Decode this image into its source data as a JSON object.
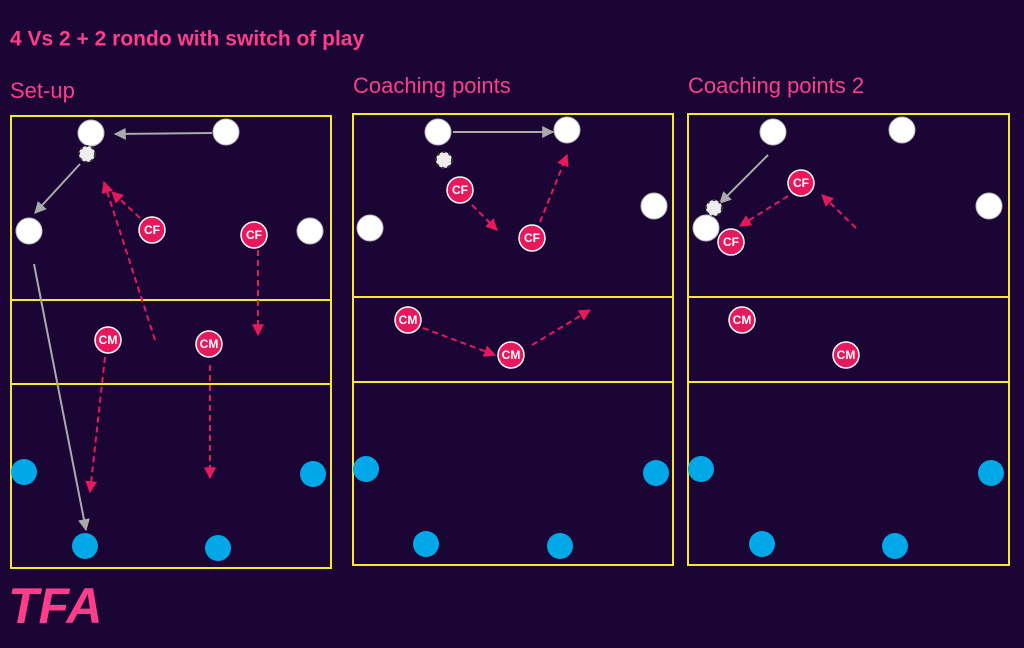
{
  "title": "4 Vs 2 + 2 rondo with switch of play",
  "panels": [
    {
      "title": "Set-up",
      "labels": [
        "CF",
        "CF",
        "CM",
        "CM"
      ]
    },
    {
      "title": "Coaching points",
      "labels": [
        "CF",
        "CF",
        "CM",
        "CM"
      ]
    },
    {
      "title": "Coaching points 2",
      "labels": [
        "CF",
        "CF",
        "CM",
        "CM"
      ]
    }
  ],
  "logo": "TFA"
}
